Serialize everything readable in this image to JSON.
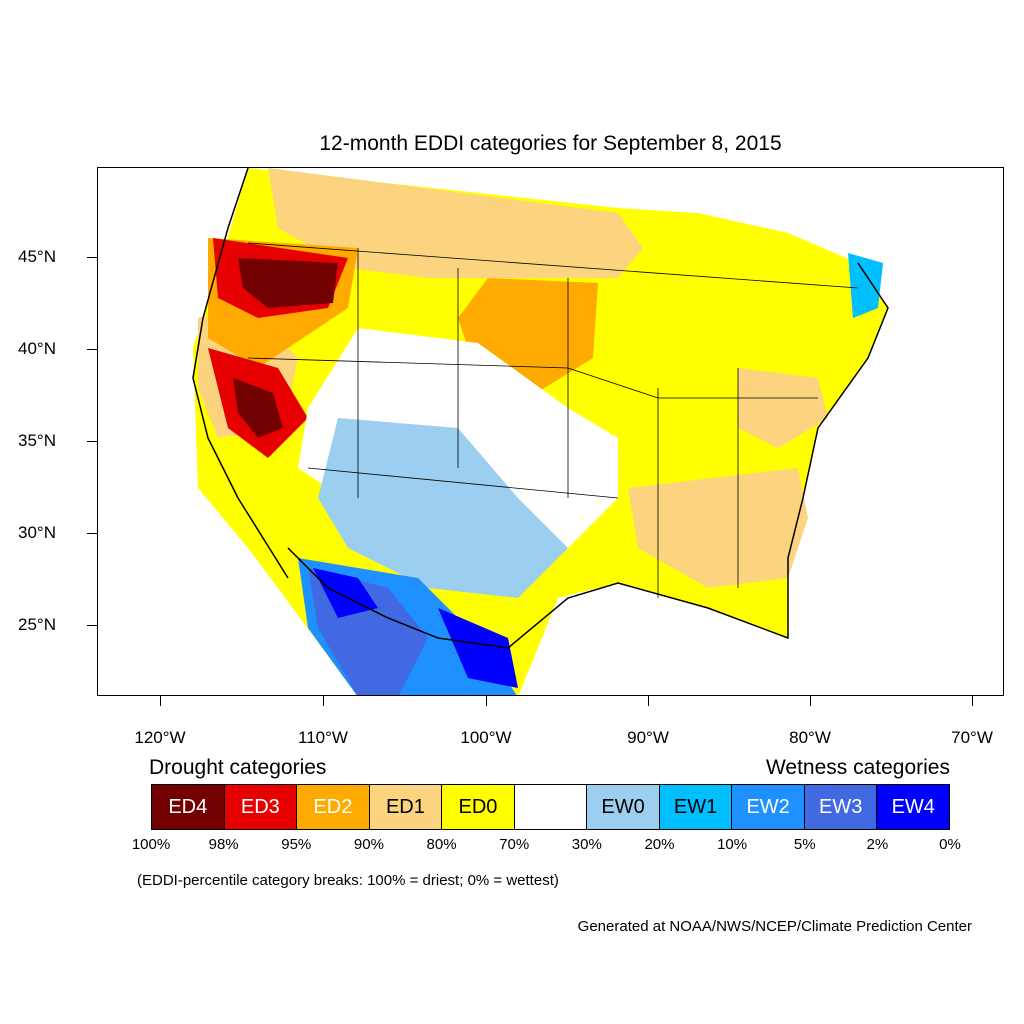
{
  "title": "12-month EDDI categories for September 8, 2015",
  "map": {
    "lat_labels": [
      "45°N",
      "40°N",
      "35°N",
      "30°N",
      "25°N"
    ],
    "lon_labels": [
      "120°W",
      "110°W",
      "100°W",
      "90°W",
      "80°W",
      "70°W"
    ]
  },
  "legend": {
    "drought_heading": "Drought categories",
    "wetness_heading": "Wetness categories",
    "categories": [
      {
        "label": "ED4",
        "color": "#730000",
        "text_color": "#ffffff"
      },
      {
        "label": "ED3",
        "color": "#e60000",
        "text_color": "#ffffff"
      },
      {
        "label": "ED2",
        "color": "#ffaa00",
        "text_color": "#ffffff"
      },
      {
        "label": "ED1",
        "color": "#fcd37f",
        "text_color": "#000000"
      },
      {
        "label": "ED0",
        "color": "#ffff00",
        "text_color": "#000000"
      },
      {
        "label": "",
        "color": "#ffffff",
        "text_color": "#000000"
      },
      {
        "label": "EW0",
        "color": "#9ccfef",
        "text_color": "#000000"
      },
      {
        "label": "EW1",
        "color": "#00bfff",
        "text_color": "#000000"
      },
      {
        "label": "EW2",
        "color": "#1e90ff",
        "text_color": "#ffffff"
      },
      {
        "label": "EW3",
        "color": "#4169e1",
        "text_color": "#ffffff"
      },
      {
        "label": "EW4",
        "color": "#0000ff",
        "text_color": "#ffffff"
      }
    ],
    "percent_breaks": [
      "100%",
      "98%",
      "95%",
      "90%",
      "80%",
      "70%",
      "30%",
      "20%",
      "10%",
      "5%",
      "2%",
      "0%"
    ]
  },
  "note": "(EDDI-percentile category breaks: 100% = driest; 0% = wettest)",
  "credit": "Generated at NOAA/NWS/NCEP/Climate Prediction Center"
}
